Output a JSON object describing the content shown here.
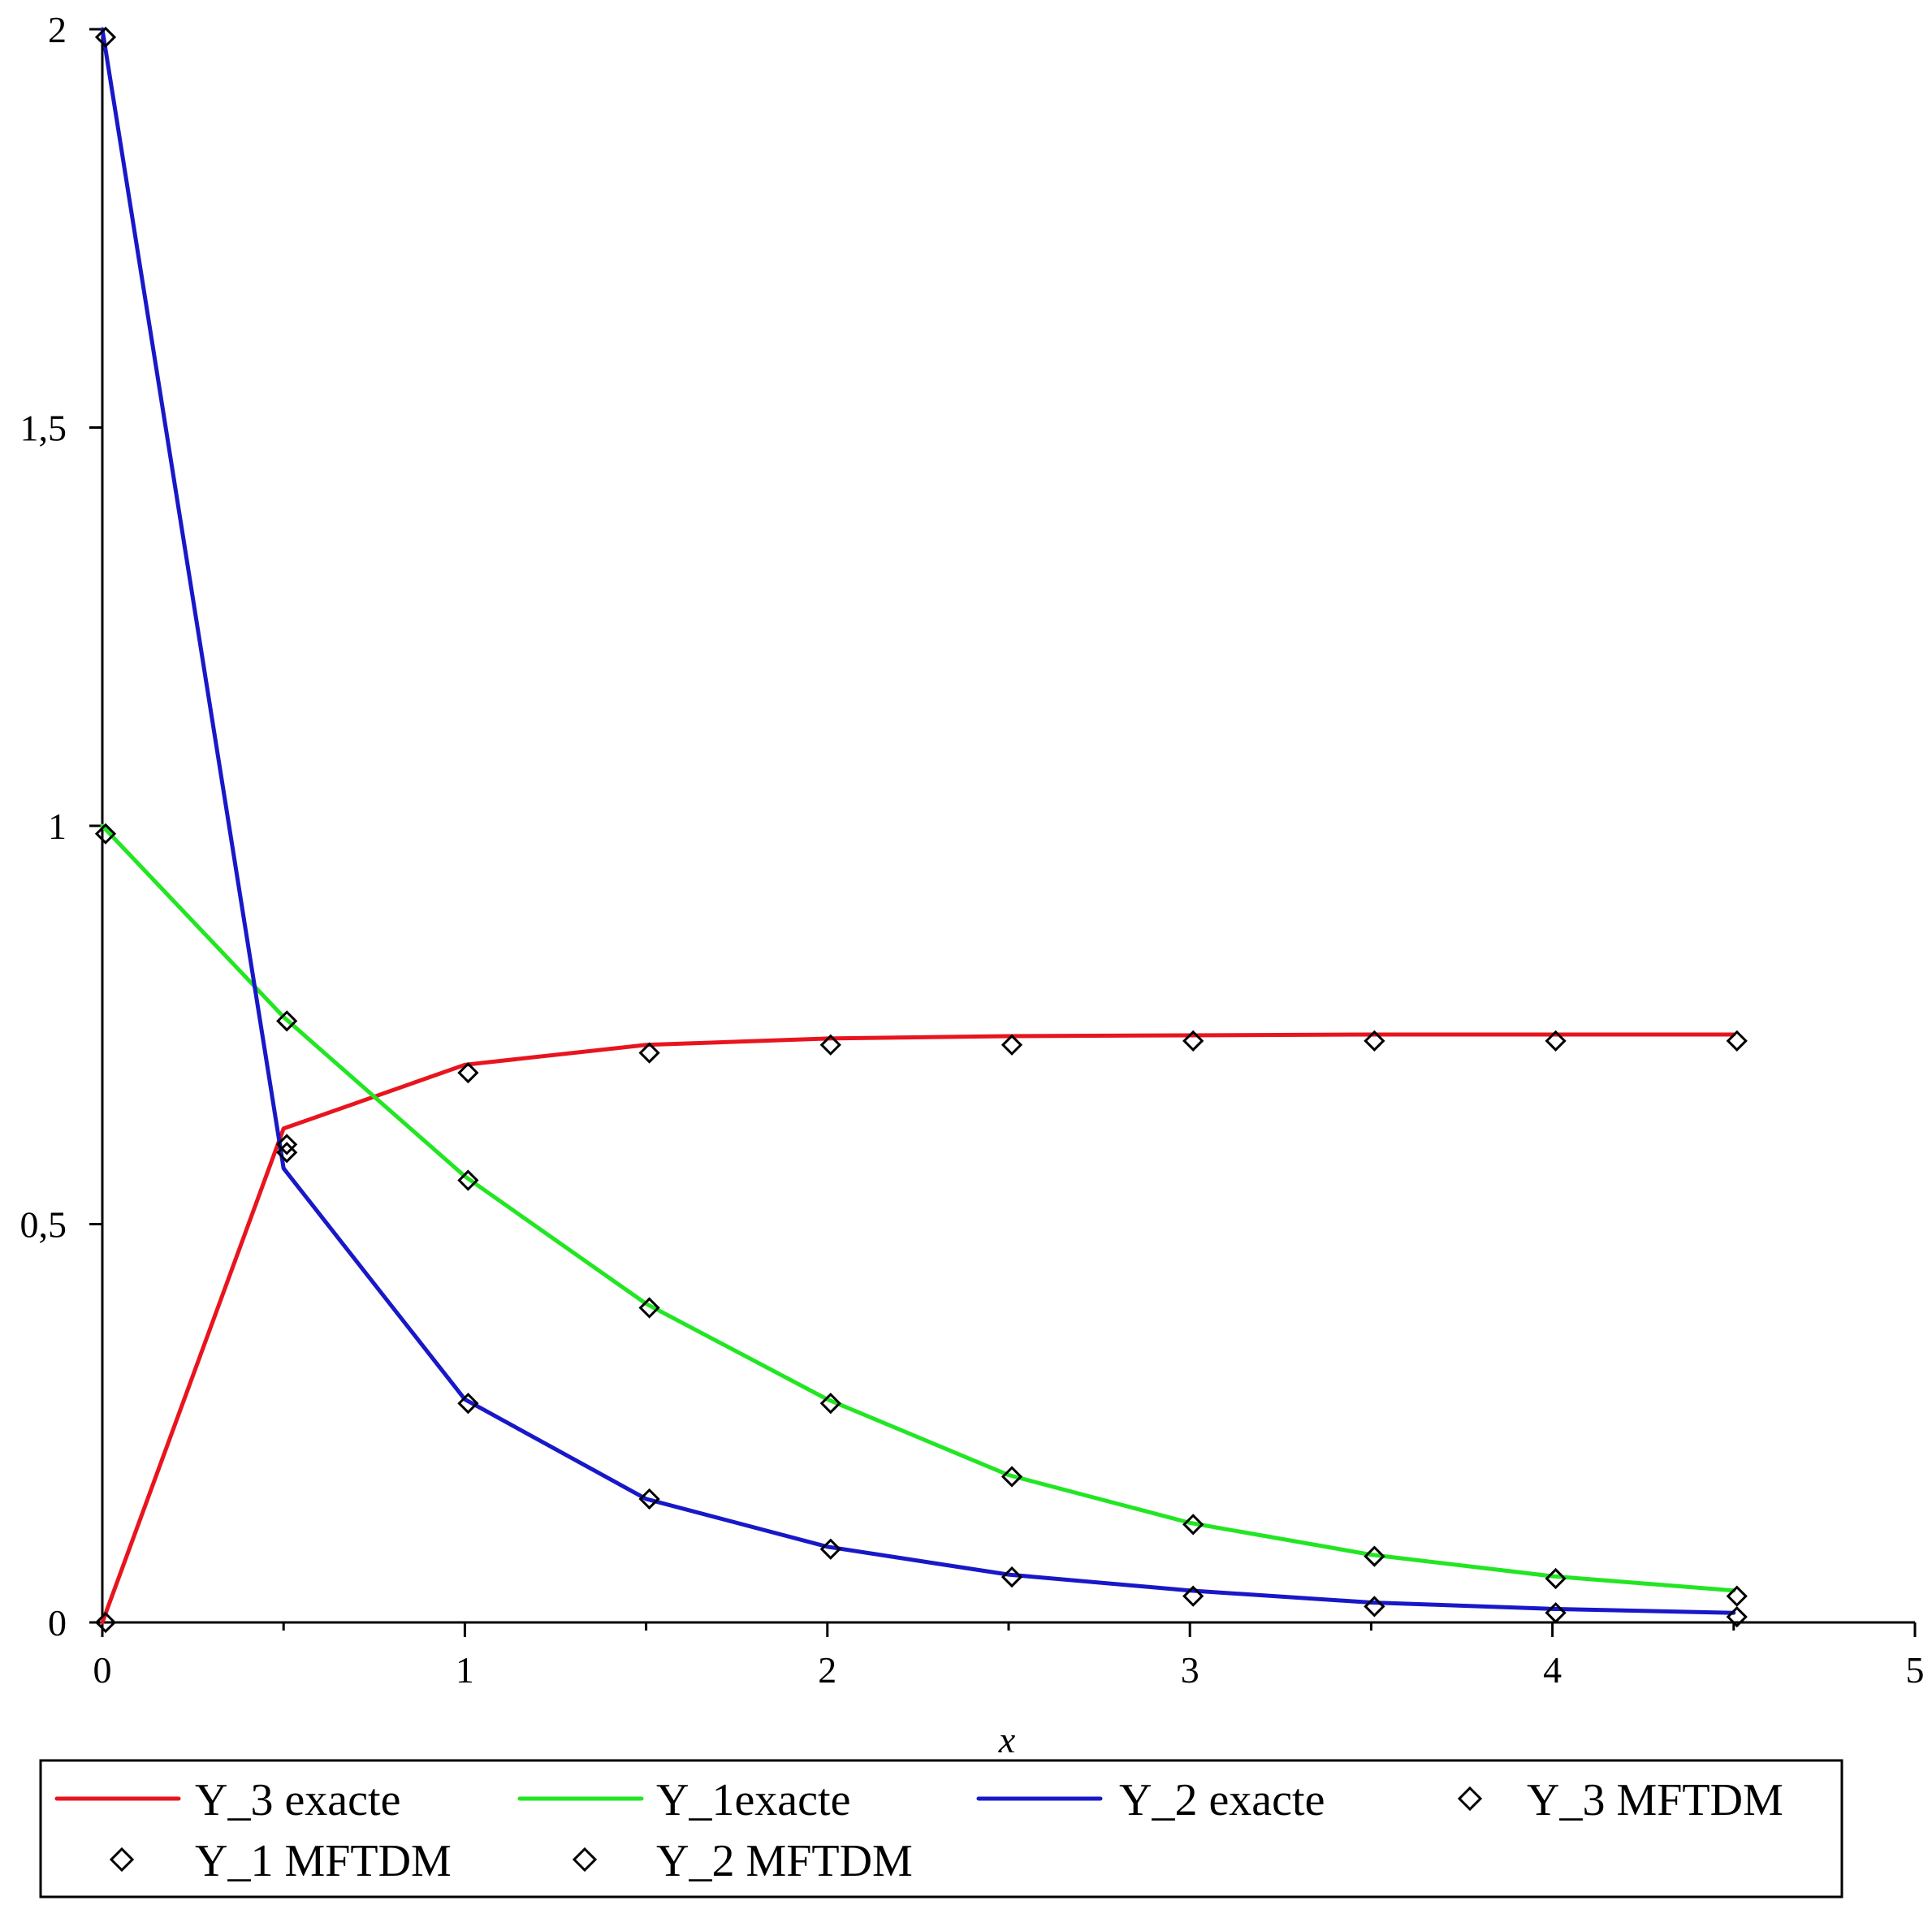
{
  "chart_data": {
    "type": "line",
    "xlabel": "x",
    "ylabel": "",
    "xlim": [
      0,
      5
    ],
    "ylim": [
      0,
      2
    ],
    "x_ticks": [
      0,
      1,
      2,
      3,
      4,
      5
    ],
    "x_tick_labels": [
      "0",
      "1",
      "2",
      "3",
      "4",
      "5"
    ],
    "y_ticks": [
      0,
      0.5,
      1,
      1.5,
      2
    ],
    "y_tick_labels": [
      "0",
      "0,5",
      "1",
      "1,5",
      "2"
    ],
    "grid": false,
    "legend_position": "bottom",
    "x": [
      0,
      0.5,
      1,
      1.5,
      2,
      2.5,
      3,
      3.5,
      4,
      4.5
    ],
    "series": [
      {
        "name": "Y_3 exacte",
        "style": "line",
        "color": "#e8141e",
        "values": [
          0,
          0.62,
          0.7,
          0.725,
          0.733,
          0.736,
          0.737,
          0.738,
          0.738,
          0.738
        ]
      },
      {
        "name": "Y_1exacte",
        "style": "line",
        "color": "#22e622",
        "values": [
          1,
          0.76,
          0.56,
          0.4,
          0.28,
          0.185,
          0.125,
          0.085,
          0.058,
          0.04
        ]
      },
      {
        "name": "Y_2 exacte",
        "style": "line",
        "color": "#1818c8",
        "values": [
          2,
          0.57,
          0.28,
          0.155,
          0.095,
          0.06,
          0.04,
          0.025,
          0.017,
          0.012
        ]
      },
      {
        "name": "Y_3 MFTDM",
        "style": "marker",
        "color": "#000000",
        "values": [
          0,
          0.6,
          0.69,
          0.715,
          0.725,
          0.725,
          0.73,
          0.73,
          0.73,
          0.73
        ]
      },
      {
        "name": "Y_1 MFTDM",
        "style": "marker",
        "color": "#000000",
        "values": [
          0.99,
          0.755,
          0.555,
          0.395,
          0.275,
          0.183,
          0.123,
          0.083,
          0.055,
          0.033
        ]
      },
      {
        "name": "Y_2 MFTDM",
        "style": "marker",
        "color": "#000000",
        "values": [
          1.99,
          0.59,
          0.275,
          0.155,
          0.092,
          0.057,
          0.033,
          0.02,
          0.012,
          0.007
        ]
      }
    ]
  }
}
